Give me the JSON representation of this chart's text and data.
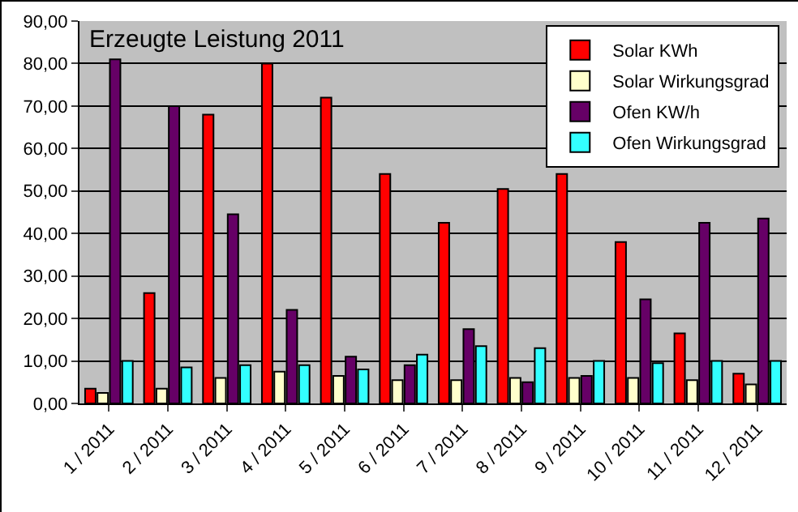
{
  "chart_data": {
    "type": "bar",
    "title": "Erzeugte Leistung 2011",
    "categories": [
      "1 / 2011",
      "2 / 2011",
      "3 / 2011",
      "4 / 2011",
      "5 / 2011",
      "6 / 2011",
      "7 / 2011",
      "8 / 2011",
      "9 / 2011",
      "10 / 2011",
      "11 / 2011",
      "12 / 2011"
    ],
    "series": [
      {
        "name": "Solar KWh",
        "color": "#ff0000",
        "values": [
          3.5,
          26,
          68,
          80,
          72,
          54,
          42.5,
          50.5,
          54,
          38,
          16.5,
          7
        ]
      },
      {
        "name": "Solar Wirkungsgrad",
        "color": "#ffffcc",
        "values": [
          2.5,
          3.5,
          6,
          7.5,
          6.5,
          5.5,
          5.5,
          6,
          6,
          6,
          5.5,
          4.5
        ]
      },
      {
        "name": "Ofen KW/h",
        "color": "#660066",
        "values": [
          81,
          70,
          44.5,
          22,
          11,
          9,
          17.5,
          5,
          6.5,
          24.5,
          42.5,
          43.5
        ]
      },
      {
        "name": "Ofen Wirkungsgrad",
        "color": "#33ffff",
        "values": [
          10,
          8.5,
          9,
          9,
          8,
          11.5,
          13.5,
          13,
          10,
          9.5,
          10,
          10
        ]
      }
    ],
    "ylim": [
      0,
      90
    ],
    "yticks": [
      {
        "value": 0,
        "label": "0,00"
      },
      {
        "value": 10,
        "label": "10,00"
      },
      {
        "value": 20,
        "label": "20,00"
      },
      {
        "value": 30,
        "label": "30,00"
      },
      {
        "value": 40,
        "label": "40,00"
      },
      {
        "value": 50,
        "label": "50,00"
      },
      {
        "value": 60,
        "label": "60,00"
      },
      {
        "value": 70,
        "label": "70,00"
      },
      {
        "value": 80,
        "label": "80,00"
      },
      {
        "value": 90,
        "label": "90,00"
      }
    ],
    "grid": "y",
    "legend": "top right"
  }
}
